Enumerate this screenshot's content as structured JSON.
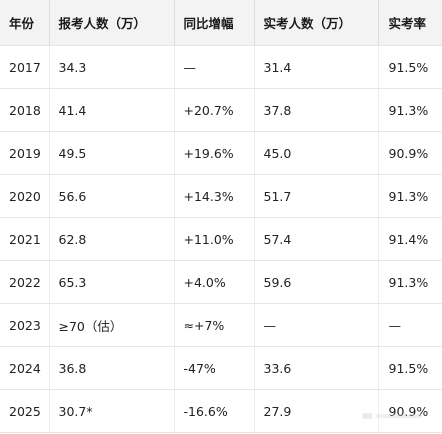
{
  "table": {
    "headers": [
      "年份",
      "报考人数（万）",
      "同比增幅",
      "实考人数（万）",
      "实考率"
    ],
    "rows": [
      [
        "2017",
        "34.3",
        "—",
        "31.4",
        "91.5%"
      ],
      [
        "2018",
        "41.4",
        "+20.7%",
        "37.8",
        "91.3%"
      ],
      [
        "2019",
        "49.5",
        "+19.6%",
        "45.0",
        "90.9%"
      ],
      [
        "2020",
        "56.6",
        "+14.3%",
        "51.7",
        "91.3%"
      ],
      [
        "2021",
        "62.8",
        "+11.0%",
        "57.4",
        "91.4%"
      ],
      [
        "2022",
        "65.3",
        "+4.0%",
        "59.6",
        "91.3%"
      ],
      [
        "2023",
        "≥70（估）",
        "≈+7%",
        "—",
        "—"
      ],
      [
        "2024",
        "36.8",
        "-47%",
        "33.6",
        "91.5%"
      ],
      [
        "2025",
        "30.7*",
        "-16.6%",
        "27.9",
        "90.9%"
      ]
    ]
  },
  "colors": {
    "header_bg": "#f3f3f3",
    "border": "#e6e6e6"
  }
}
